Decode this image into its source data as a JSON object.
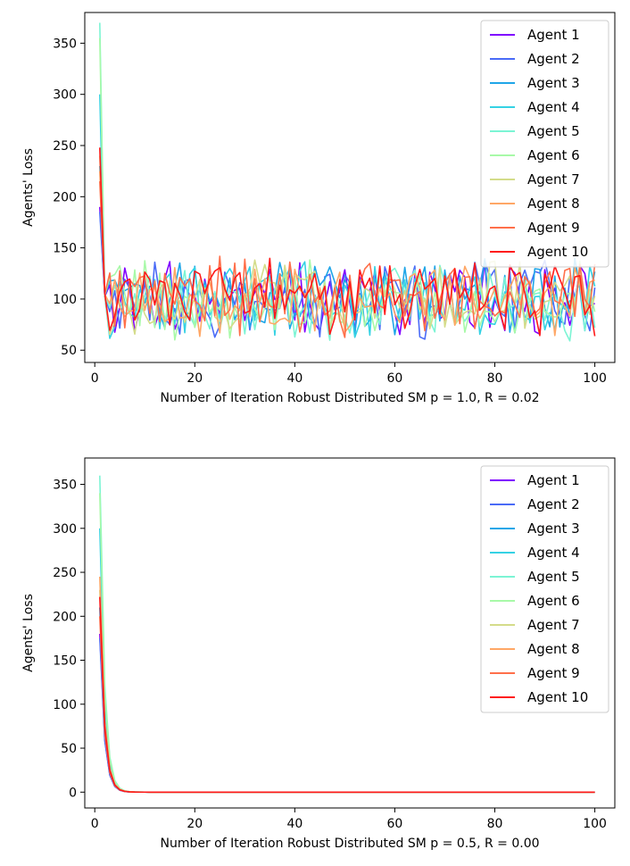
{
  "figure": {
    "colors": {
      "Agent 1": "#8000ff",
      "Agent 2": "#4a6bf7",
      "Agent 3": "#1fa6e8",
      "Agent 4": "#35d2e4",
      "Agent 5": "#7cf4d4",
      "Agent 6": "#a8f9a8",
      "Agent 7": "#d4dc8a",
      "Agent 8": "#ffa766",
      "Agent 9": "#ff6f4a",
      "Agent 10": "#ff1a1a"
    }
  },
  "chart_data": [
    {
      "type": "line",
      "xlabel": "Number of Iteration Robust Distributed SM p = 1.0, R = 0.02",
      "ylabel": "Agents' Loss",
      "xlim": [
        -2,
        104
      ],
      "ylim": [
        38,
        380
      ],
      "xticks": [
        0,
        20,
        40,
        60,
        80,
        100
      ],
      "yticks": [
        50,
        100,
        150,
        200,
        250,
        300,
        350
      ],
      "legend_position": "upper right",
      "grid": false,
      "x_range": [
        1,
        100
      ],
      "series": [
        {
          "name": "Agent 1",
          "start": 190,
          "plateau": 100
        },
        {
          "name": "Agent 2",
          "start": 185,
          "plateau": 100
        },
        {
          "name": "Agent 3",
          "start": 230,
          "plateau": 100
        },
        {
          "name": "Agent 4",
          "start": 300,
          "plateau": 100
        },
        {
          "name": "Agent 5",
          "start": 370,
          "plateau": 100
        },
        {
          "name": "Agent 6",
          "start": 355,
          "plateau": 100
        },
        {
          "name": "Agent 7",
          "start": 240,
          "plateau": 100
        },
        {
          "name": "Agent 8",
          "start": 225,
          "plateau": 100
        },
        {
          "name": "Agent 9",
          "start": 215,
          "plateau": 100
        },
        {
          "name": "Agent 10",
          "start": 248,
          "plateau": 100
        }
      ]
    },
    {
      "type": "line",
      "xlabel": "Number of Iteration Robust Distributed SM p = 0.5, R = 0.00",
      "ylabel": "Agents' Loss",
      "xlim": [
        -2,
        104
      ],
      "ylim": [
        -18,
        380
      ],
      "xticks": [
        0,
        20,
        40,
        60,
        80,
        100
      ],
      "yticks": [
        0,
        50,
        100,
        150,
        200,
        250,
        300,
        350
      ],
      "legend_position": "upper right",
      "grid": false,
      "x_range": [
        1,
        100
      ],
      "series": [
        {
          "name": "Agent 1",
          "start": 180,
          "plateau": 0
        },
        {
          "name": "Agent 2",
          "start": 175,
          "plateau": 0
        },
        {
          "name": "Agent 3",
          "start": 210,
          "plateau": 0
        },
        {
          "name": "Agent 4",
          "start": 300,
          "plateau": 0
        },
        {
          "name": "Agent 5",
          "start": 360,
          "plateau": 0
        },
        {
          "name": "Agent 6",
          "start": 340,
          "plateau": 0
        },
        {
          "name": "Agent 7",
          "start": 230,
          "plateau": 0
        },
        {
          "name": "Agent 8",
          "start": 245,
          "plateau": 0
        },
        {
          "name": "Agent 9",
          "start": 200,
          "plateau": 0
        },
        {
          "name": "Agent 10",
          "start": 222,
          "plateau": 0
        }
      ]
    }
  ]
}
